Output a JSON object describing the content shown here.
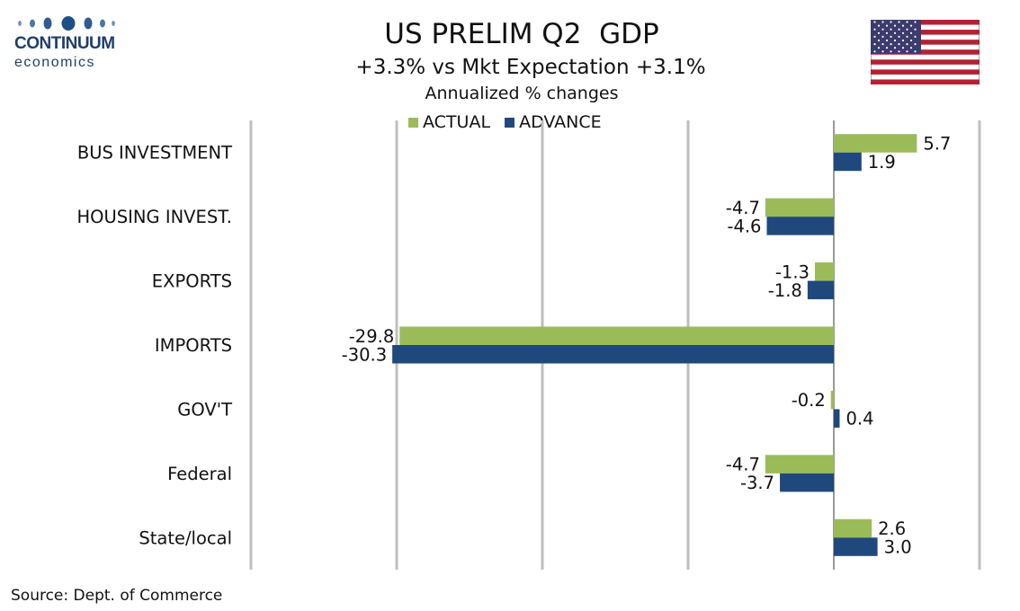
{
  "logo": {
    "name": "CONTINUUM",
    "sub": "economics"
  },
  "header": {
    "title": "US PRELIM Q2  GDP",
    "subtitle": "+3.3% vs Mkt Expectation +3.1%",
    "note": "Annualized % changes"
  },
  "flag_icon": "us-flag-icon",
  "colors": {
    "actual": "#9bbb59",
    "advance": "#1f497d",
    "grid": "#bfbfbf"
  },
  "footer": {
    "source": "Source: Dept. of Commerce"
  },
  "chart_data": {
    "type": "bar",
    "orientation": "horizontal",
    "categories": [
      "BUS INVESTMENT",
      "HOUSING INVEST.",
      "EXPORTS",
      "IMPORTS",
      "GOV'T",
      "Federal",
      "State/local"
    ],
    "series": [
      {
        "name": "ACTUAL",
        "values": [
          5.7,
          -4.7,
          -1.3,
          -29.8,
          -0.2,
          -4.7,
          2.6
        ],
        "labels": [
          "5.7",
          "-4.7",
          "-1.3",
          "-29.8",
          "-0.2",
          "-4.7",
          "2.6"
        ]
      },
      {
        "name": "ADVANCE",
        "values": [
          1.9,
          -4.6,
          -1.8,
          -30.3,
          0.4,
          -3.7,
          3.0
        ],
        "labels": [
          "1.9",
          "-4.6",
          "-1.8",
          "-30.3",
          "0.4",
          "-3.7",
          "3.0"
        ]
      }
    ],
    "xlim": [
      -40,
      10
    ],
    "grid": true,
    "legend": "top"
  }
}
